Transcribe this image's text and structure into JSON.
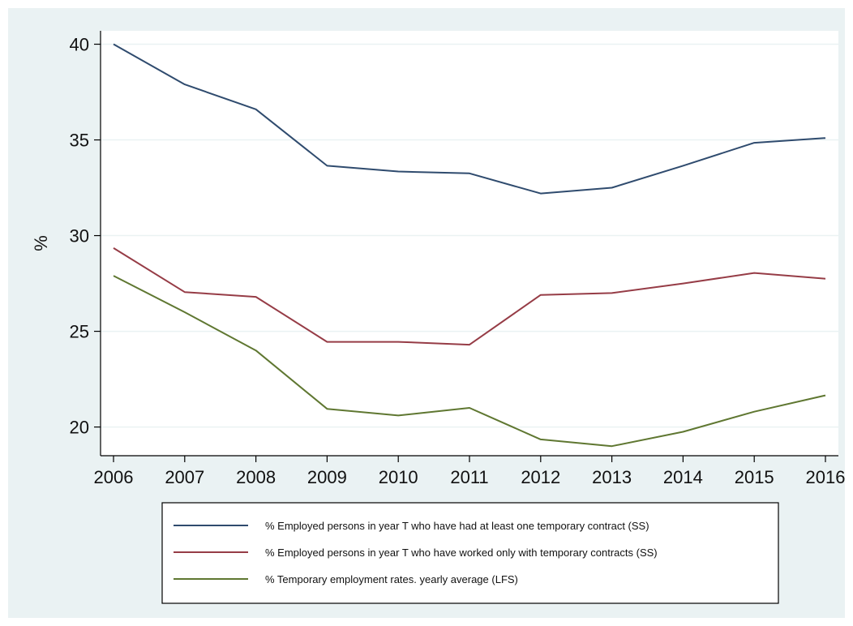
{
  "chart_data": {
    "type": "line",
    "ylabel": "%",
    "xlabel": "",
    "x": [
      2006,
      2007,
      2008,
      2009,
      2010,
      2011,
      2012,
      2013,
      2014,
      2015,
      2016
    ],
    "ylim": [
      18.5,
      40.7
    ],
    "yticks": [
      20,
      25,
      30,
      35,
      40
    ],
    "grid": true,
    "legend_position": "bottom",
    "series": [
      {
        "name": "% Employed persons in year T who have had at least one temporary contract (SS)",
        "color": "#2f4b6e",
        "values": [
          40.0,
          37.9,
          36.6,
          33.65,
          33.35,
          33.25,
          32.2,
          32.5,
          33.65,
          34.85,
          35.1
        ]
      },
      {
        "name": "% Employed persons in year T who have worked only with temporary contracts  (SS)",
        "color": "#963c46",
        "values": [
          29.35,
          27.05,
          26.8,
          24.45,
          24.45,
          24.3,
          26.9,
          27.0,
          27.5,
          28.05,
          27.75
        ]
      },
      {
        "name": "% Temporary employment rates. yearly average (LFS)",
        "color": "#5f7731",
        "values": [
          27.9,
          26.0,
          24.0,
          20.95,
          20.6,
          21.0,
          19.35,
          19.0,
          19.75,
          20.8,
          21.65
        ]
      }
    ]
  }
}
